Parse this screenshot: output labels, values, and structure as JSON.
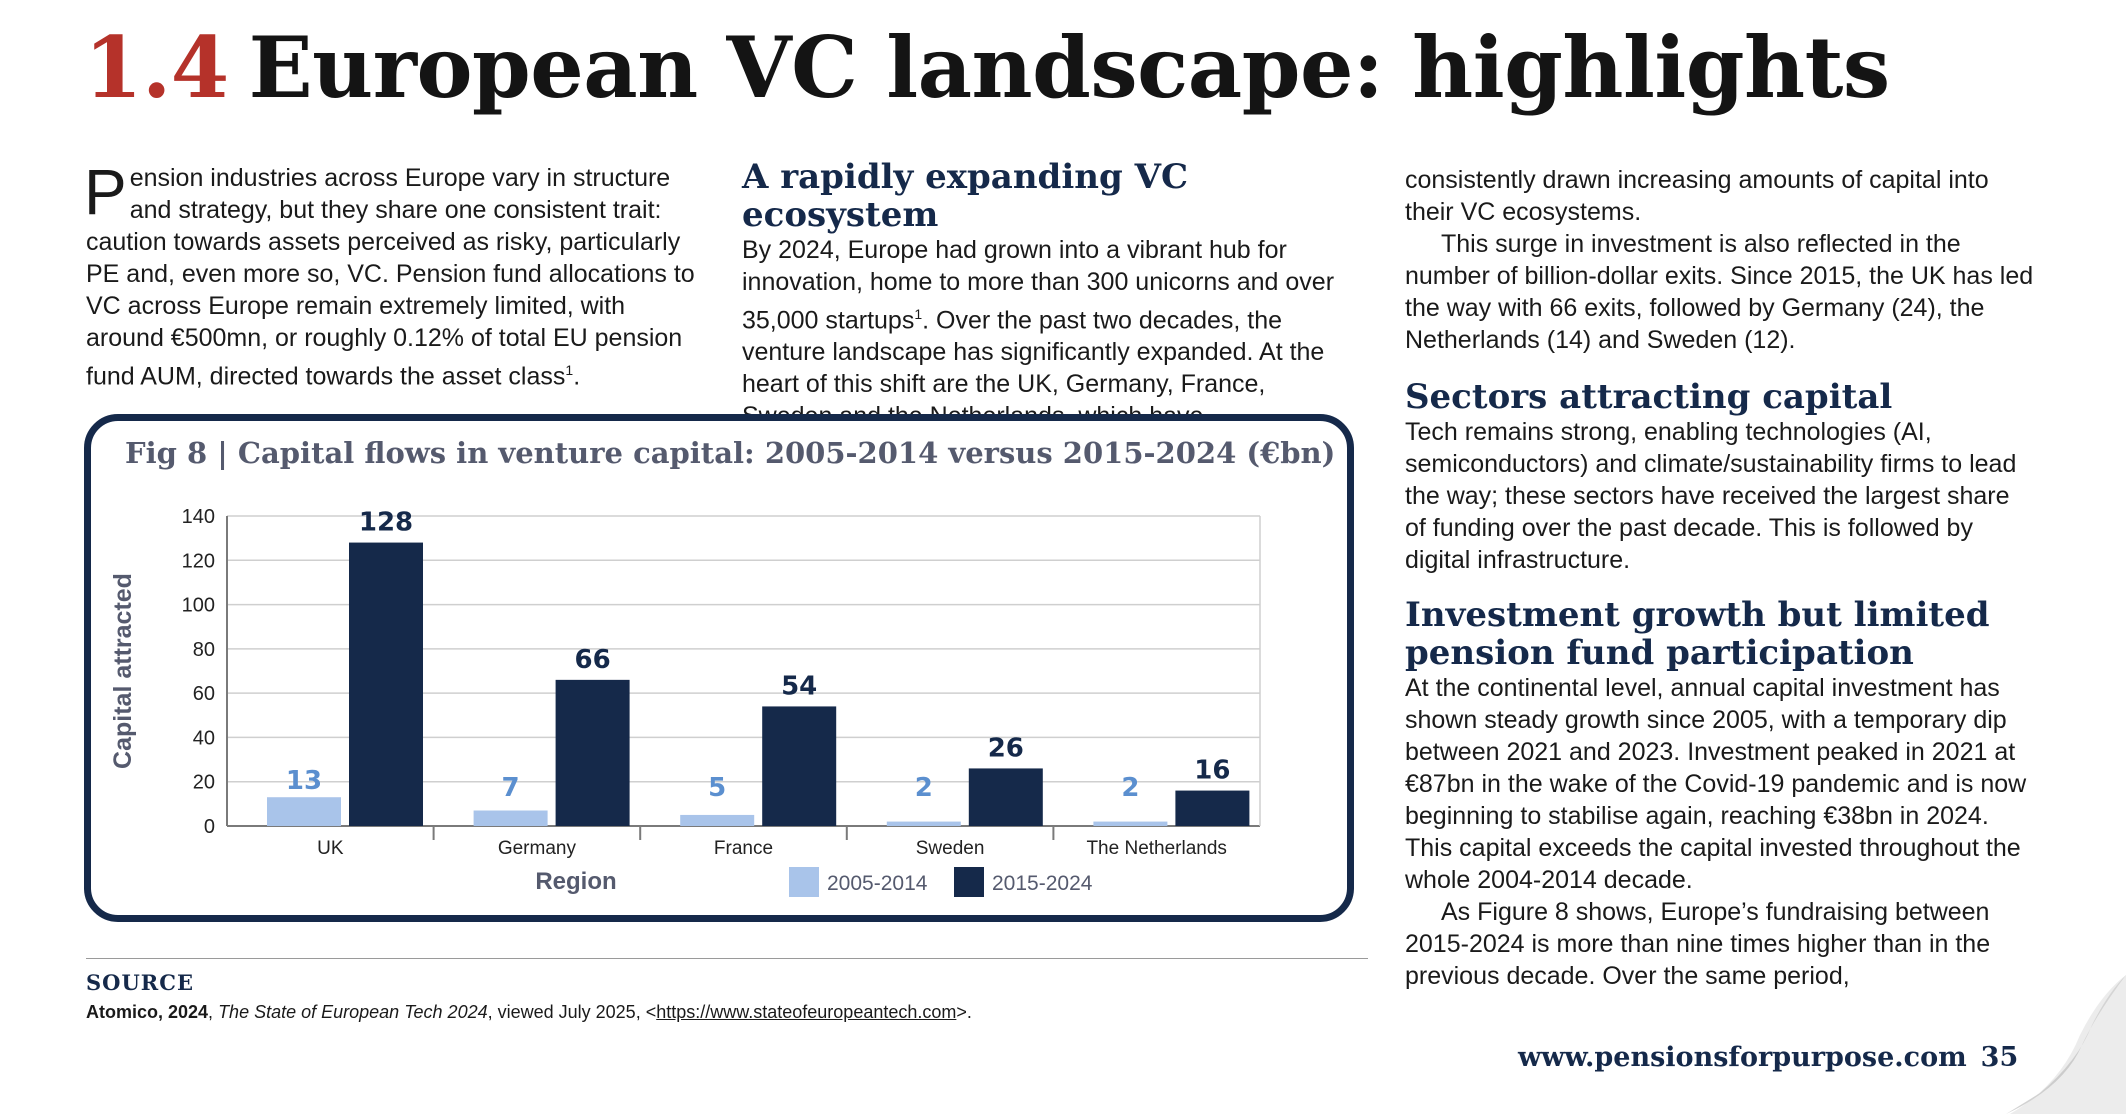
{
  "title": {
    "number": "1.4",
    "text": "European VC landscape: highlights"
  },
  "intro": {
    "dropcap": "P",
    "text": "ension industries across Europe vary in structure and strategy, but they share one consistent trait: caution towards assets perceived as risky, particularly PE and, even more so, VC. Pension fund allocations to VC across Europe remain extremely limited, with around €500mn, or roughly 0.12% of total EU pension fund AUM, directed towards the asset class",
    "footnote": "1",
    "end": "."
  },
  "ecosystem": {
    "heading": "A rapidly expanding VC ecosystem",
    "text_a": "By 2024, Europe had grown into a vibrant hub for innovation, home to more than 300 unicorns and over 35,000 startups",
    "footnote": "1",
    "text_b": ". Over the past two decades, the venture landscape has significantly expanded. At the heart of this shift are the UK, Germany, France, Sweden and the Netherlands, which have"
  },
  "right_column": {
    "continuation": "consistently drawn increasing amounts of capital into their VC ecosystems.",
    "exits_paragraph": "This surge in investment is also reflected in the number of billion-dollar exits. Since 2015, the UK has led the way with 66 exits, followed by Germany (24), the Netherlands (14) and Sweden (12).",
    "sectors_heading": "Sectors attracting capital",
    "sectors_text": "Tech remains strong, enabling technologies (AI, semiconductors) and climate/sustainability firms to lead the way; these sectors have received the largest share of funding over the past decade. This is followed by digital infrastructure.",
    "growth_heading": "Investment growth but limited pension fund participation",
    "growth_text": "At the continental level, annual capital investment has shown steady growth since 2005, with a temporary dip between 2021 and 2023. Investment peaked in 2021 at €87bn in the wake of the Covid-19 pandemic and is now beginning to stabilise again, reaching €38bn in 2024. This capital exceeds the capital invested throughout the whole 2004-2014 decade.",
    "fundraising_text": "As Figure 8 shows, Europe’s fundraising between 2015-2024 is more than nine times higher than in the previous decade. Over the same period,"
  },
  "chart_data": {
    "type": "bar",
    "title": "Fig 8 | Capital flows in venture capital: 2005-2014 versus 2015-2024 (€bn)",
    "xlabel": "Region",
    "ylabel": "Capital attracted",
    "categories": [
      "UK",
      "Germany",
      "France",
      "Sweden",
      "The Netherlands"
    ],
    "series": [
      {
        "name": "2005-2014",
        "color": "#a9c4ea",
        "label_color": "#5b8fcf",
        "values": [
          13,
          7,
          5,
          2,
          2
        ]
      },
      {
        "name": "2015-2024",
        "color": "#15294a",
        "label_color": "#15294a",
        "values": [
          128,
          66,
          54,
          26,
          16
        ]
      }
    ],
    "ylim": [
      0,
      140
    ],
    "yticks": [
      0,
      20,
      40,
      60,
      80,
      100,
      120,
      140
    ],
    "grid": true,
    "legend": "bottom-center"
  },
  "source": {
    "heading": "SOURCE",
    "author": "Atomico, 2024",
    "work": "The State of European Tech 2024",
    "viewed": ", viewed July 2025, <",
    "url": "https://www.stateofeuropeantech.com",
    "close": ">."
  },
  "footer": {
    "url": "www.pensionsforpurpose.com",
    "page": "35"
  },
  "colors": {
    "accent_red": "#b5322a",
    "navy": "#15294a",
    "light_blue": "#a9c4ea"
  }
}
